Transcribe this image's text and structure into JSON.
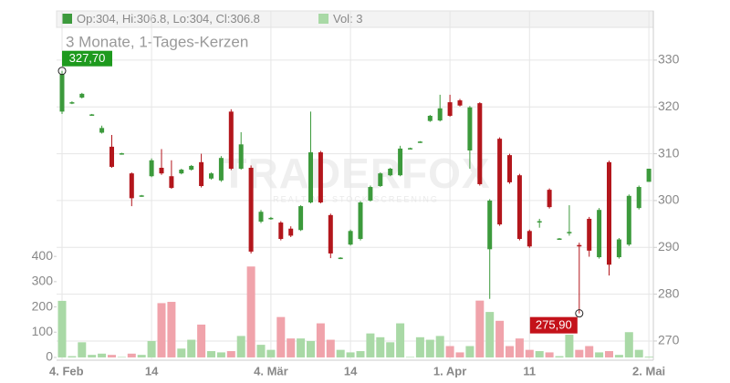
{
  "chart_data": {
    "type": "candlestick",
    "title": "3 Monate, 1-Tages-Kerzen",
    "header": {
      "ohlc_label": "Op:304, Hi:306.8, Lo:304, Cl:306.8",
      "volume_label": "Vol: 3"
    },
    "watermark": {
      "brand": "TRADERFOX",
      "tagline": "REALTIME STOCK SCREENING"
    },
    "categories": [
      "4. Feb",
      null,
      null,
      null,
      null,
      null,
      null,
      null,
      null,
      "14",
      null,
      null,
      null,
      null,
      null,
      null,
      null,
      null,
      null,
      null,
      null,
      "4. Mär",
      null,
      null,
      null,
      null,
      null,
      null,
      null,
      "14",
      null,
      null,
      null,
      null,
      null,
      null,
      null,
      null,
      null,
      "1. Apr",
      null,
      null,
      null,
      null,
      null,
      null,
      null,
      "11",
      null,
      null,
      null,
      null,
      null,
      null,
      null,
      null,
      null,
      null,
      null,
      "2. Mai"
    ],
    "open": [
      319,
      320.8,
      322,
      318.3,
      314.5,
      311.5,
      310,
      305.8,
      301,
      305.2,
      307,
      305.2,
      305.8,
      306.6,
      308.2,
      304.7,
      304.3,
      319,
      306.8,
      307,
      295.5,
      296.1,
      295.3,
      294,
      293.7,
      299.6,
      310.3,
      296.9,
      287.7,
      290.6,
      291.8,
      300,
      303.1,
      305.4,
      305.4,
      311.1,
      312.5,
      317,
      317.1,
      321,
      321.4,
      310.7,
      320.8,
      289.6,
      313.2,
      309.7,
      305.4,
      293.5,
      295.5,
      302.3,
      291.8,
      293,
      290.5,
      296.1,
      287.9,
      308.2,
      287.9,
      290.6,
      298.4,
      304
    ],
    "high": [
      327.7,
      321.2,
      323,
      318.5,
      316,
      314,
      310.2,
      306,
      301.2,
      309,
      311,
      308.6,
      306.8,
      307.6,
      310,
      306,
      309.5,
      319.5,
      314.6,
      307.5,
      298,
      296.5,
      295.6,
      294.5,
      299,
      319,
      310.6,
      297.2,
      287.9,
      293.8,
      299.9,
      303.2,
      306,
      307,
      311.7,
      311.3,
      312.7,
      318.3,
      322.6,
      322.6,
      321.7,
      320.2,
      321,
      300.3,
      313.5,
      310,
      305.7,
      293.8,
      296.1,
      302.6,
      292,
      299,
      291,
      296.5,
      298.4,
      308.5,
      292,
      301.3,
      303.2,
      306.8
    ],
    "low": [
      318.5,
      320.6,
      321.8,
      318.1,
      314.3,
      307,
      309.8,
      298.8,
      300.8,
      305,
      305.5,
      302.5,
      305.6,
      306.4,
      302.8,
      304.5,
      304,
      306.5,
      306.6,
      288.7,
      295.2,
      295.9,
      291.5,
      292.2,
      293.5,
      299.4,
      299.4,
      287.7,
      287.5,
      290.4,
      291.5,
      299.8,
      302.9,
      305.2,
      305.2,
      310.9,
      312.3,
      316.8,
      316.9,
      317.9,
      320.1,
      306.8,
      303.2,
      279,
      294.6,
      303.6,
      291.5,
      289.9,
      294.2,
      298.3,
      291.6,
      292.5,
      275.9,
      288,
      287.6,
      284,
      287.6,
      290.3,
      298.1,
      304
    ],
    "close": [
      327,
      321,
      322.8,
      318.4,
      315.5,
      307.2,
      310.1,
      300.5,
      301.1,
      308.6,
      305.8,
      302.7,
      306.6,
      307.4,
      303.1,
      305.8,
      309.1,
      306.8,
      312,
      289.1,
      297.6,
      296.3,
      291.8,
      292.5,
      298.8,
      310.3,
      299.6,
      288.7,
      287.8,
      293.5,
      299.6,
      302.9,
      305.8,
      306.8,
      311.1,
      311.2,
      312.6,
      318.1,
      319.7,
      318.1,
      320.3,
      319.9,
      303.5,
      300,
      294.9,
      303.9,
      291.8,
      290.2,
      295.6,
      298.6,
      291.9,
      293.3,
      290.2,
      289.3,
      298,
      286.3,
      291.7,
      301,
      302.9,
      306.8
    ],
    "volume": [
      224,
      5,
      60,
      10,
      15,
      10,
      2,
      15,
      10,
      65,
      215,
      220,
      35,
      70,
      130,
      25,
      20,
      25,
      85,
      360,
      50,
      30,
      160,
      75,
      75,
      65,
      135,
      70,
      30,
      20,
      25,
      95,
      80,
      60,
      135,
      2,
      80,
      70,
      85,
      45,
      20,
      45,
      225,
      180,
      145,
      45,
      75,
      30,
      25,
      20,
      5,
      90,
      30,
      45,
      20,
      25,
      10,
      100,
      30,
      3
    ],
    "colors": {
      "up": "#3c9a3c",
      "down": "#b3161c",
      "volume_up": "#a9d9a6",
      "volume_down": "#f0a3ab"
    },
    "ylim": [
      265.9,
      340.5
    ],
    "yticks": [
      270,
      280,
      290,
      300,
      310,
      320,
      330
    ],
    "y2lim": [
      -11,
      1372
    ],
    "y2ticks": [
      0,
      100,
      200,
      300,
      400
    ],
    "max_label": {
      "value": 327.7,
      "label": "327,70"
    },
    "min_label": {
      "value": 275.9,
      "label": "275,90"
    },
    "grid": true
  }
}
